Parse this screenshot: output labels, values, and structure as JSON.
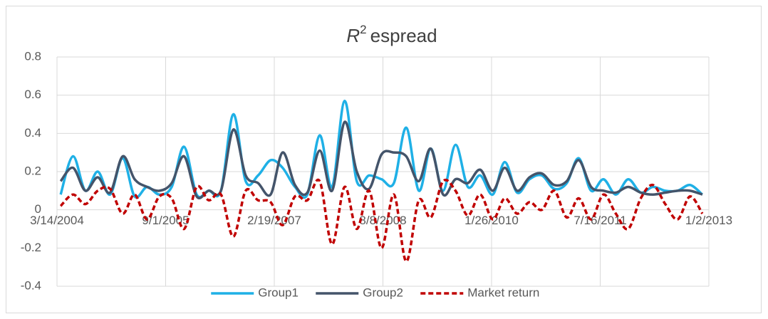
{
  "chart_data": {
    "type": "line",
    "title": [
      "R",
      "2",
      "espread"
    ],
    "x": [
      "4/1/2004",
      "6/1/2004",
      "8/1/2004",
      "10/1/2004",
      "12/1/2004",
      "2/1/2005",
      "4/1/2005",
      "6/1/2005",
      "8/1/2005",
      "10/1/2005",
      "12/1/2005",
      "2/1/2006",
      "4/1/2006",
      "6/1/2006",
      "8/1/2006",
      "10/1/2006",
      "12/1/2006",
      "2/1/2007",
      "4/1/2007",
      "6/1/2007",
      "8/1/2007",
      "10/1/2007",
      "12/1/2007",
      "2/1/2008",
      "4/1/2008",
      "6/1/2008",
      "8/1/2008",
      "10/1/2008",
      "12/1/2008",
      "2/1/2009",
      "4/1/2009",
      "6/1/2009",
      "8/1/2009",
      "10/1/2009",
      "12/1/2009",
      "2/1/2010",
      "4/1/2010",
      "6/1/2010",
      "8/1/2010",
      "10/1/2010",
      "12/1/2010",
      "2/1/2011",
      "4/1/2011",
      "6/1/2011",
      "8/1/2011",
      "10/1/2011",
      "12/1/2011",
      "2/1/2012",
      "4/1/2012",
      "6/1/2012",
      "8/1/2012",
      "10/1/2012",
      "12/1/2012"
    ],
    "series": [
      {
        "name": "Group1",
        "color": "#1fb0e6",
        "dash": false,
        "values": [
          0.08,
          0.28,
          0.1,
          0.2,
          0.08,
          0.27,
          0.07,
          0.12,
          0.08,
          0.12,
          0.33,
          0.08,
          0.1,
          0.1,
          0.5,
          0.15,
          0.18,
          0.26,
          0.22,
          0.12,
          0.08,
          0.39,
          0.12,
          0.57,
          0.15,
          0.18,
          0.16,
          0.14,
          0.43,
          0.1,
          0.32,
          0.1,
          0.34,
          0.12,
          0.18,
          0.08,
          0.25,
          0.09,
          0.16,
          0.18,
          0.11,
          0.14,
          0.27,
          0.1,
          0.16,
          0.08,
          0.16,
          0.09,
          0.12,
          0.1,
          0.1,
          0.13,
          0.08
        ]
      },
      {
        "name": "Group2",
        "color": "#44546a",
        "dash": false,
        "values": [
          0.15,
          0.22,
          0.1,
          0.17,
          0.09,
          0.28,
          0.16,
          0.12,
          0.1,
          0.14,
          0.28,
          0.07,
          0.1,
          0.1,
          0.42,
          0.18,
          0.14,
          0.08,
          0.3,
          0.13,
          0.09,
          0.31,
          0.1,
          0.46,
          0.2,
          0.11,
          0.29,
          0.3,
          0.28,
          0.15,
          0.32,
          0.08,
          0.16,
          0.14,
          0.21,
          0.1,
          0.22,
          0.1,
          0.17,
          0.19,
          0.13,
          0.15,
          0.26,
          0.12,
          0.1,
          0.09,
          0.12,
          0.09,
          0.08,
          0.09,
          0.1,
          0.1,
          0.08
        ]
      },
      {
        "name": "Market return",
        "color": "#c00000",
        "dash": true,
        "values": [
          0.02,
          0.08,
          0.03,
          0.1,
          0.11,
          -0.02,
          0.08,
          -0.05,
          0.07,
          0.06,
          -0.1,
          0.12,
          0.05,
          0.08,
          -0.14,
          0.1,
          0.05,
          0.04,
          -0.08,
          0.07,
          0.05,
          0.15,
          -0.18,
          0.12,
          -0.1,
          0.1,
          -0.2,
          0.08,
          -0.27,
          0.05,
          -0.04,
          0.15,
          0.1,
          -0.03,
          0.08,
          -0.05,
          0.06,
          -0.02,
          0.04,
          0,
          0.1,
          -0.04,
          0.06,
          -0.05,
          0.08,
          -0.02,
          -0.1,
          0.06,
          0.13,
          0.03,
          -0.05,
          0.07,
          -0.02
        ]
      }
    ],
    "xlim": [
      "3/14/2004",
      "1/2/2013"
    ],
    "xticks": [
      "3/14/2004",
      "9/1/2005",
      "2/19/2007",
      "8/8/2008",
      "1/26/2010",
      "7/16/2011",
      "1/2/2013"
    ],
    "ylim": [
      -0.4,
      0.8
    ],
    "yticks": [
      -0.4,
      -0.2,
      0,
      0.2,
      0.4,
      0.6,
      0.8
    ],
    "grid": true,
    "legend": "bottom"
  }
}
